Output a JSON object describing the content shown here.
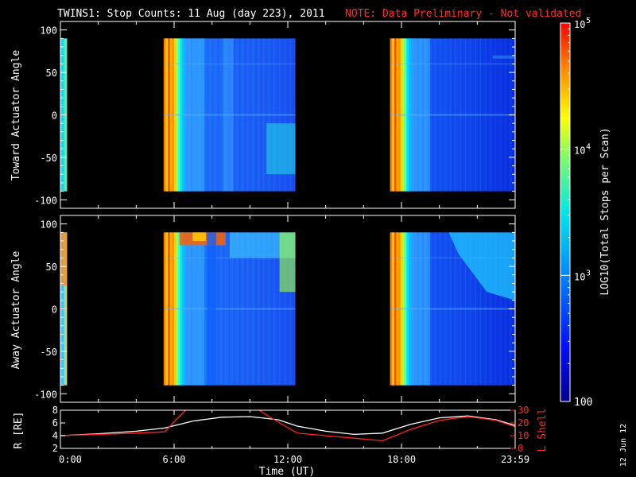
{
  "header": {
    "title": "TWINS1: Stop Counts: 11 Aug (day 223), 2011",
    "note": "NOTE: Data Preliminary - Not validated"
  },
  "colorbar": {
    "label": "LOG10(Total Stops per Scan)",
    "ticks": [
      "10^5",
      "10^4",
      "10^3",
      "100"
    ],
    "range": [
      100,
      100000
    ],
    "scale": "log"
  },
  "side_date": "12 Jun 12",
  "x_axis": {
    "label": "Time (UT)",
    "tick_labels": [
      "0:00",
      "6:00",
      "12:00",
      "18:00",
      "23:59"
    ]
  },
  "chart_data": [
    {
      "type": "heatmap",
      "ylabel": "Toward Actuator Angle",
      "ylim": [
        -110,
        110
      ],
      "yticks": [
        100,
        50,
        0,
        -50,
        -100
      ],
      "xlim_hours": [
        0,
        24
      ],
      "data_coverage_hours": [
        [
          0,
          0.35
        ],
        [
          5.45,
          12.4
        ],
        [
          17.4,
          24
        ]
      ],
      "angle_range": [
        -90,
        90
      ],
      "color_scale": "log counts 100 to 1e5 (blue to red)"
    },
    {
      "type": "heatmap",
      "ylabel": "Away Actuator Angle",
      "ylim": [
        -110,
        110
      ],
      "yticks": [
        100,
        50,
        0,
        -50,
        -100
      ],
      "xlim_hours": [
        0,
        24
      ],
      "data_coverage_hours": [
        [
          0,
          0.35
        ],
        [
          5.45,
          12.4
        ],
        [
          17.4,
          24
        ]
      ],
      "angle_range": [
        -90,
        90
      ],
      "color_scale": "log counts 100 to 1e5 (blue to red)"
    },
    {
      "type": "line",
      "ylabel": "R [RE]",
      "y2label": "L Shell",
      "ylim": [
        2,
        8
      ],
      "y2lim": [
        0,
        30
      ],
      "yticks": [
        2,
        4,
        6,
        8
      ],
      "y2ticks": [
        0,
        10,
        20,
        30
      ],
      "series": [
        {
          "name": "R [RE]",
          "color": "#ffffff",
          "x": [
            0,
            2,
            4,
            5.5,
            7,
            8.5,
            10,
            11.5,
            12.5,
            14,
            15.5,
            17,
            18.5,
            20,
            21.5,
            23,
            24
          ],
          "values": [
            4.0,
            4.3,
            4.7,
            5.2,
            6.3,
            6.9,
            7.0,
            6.5,
            5.5,
            4.7,
            4.2,
            4.4,
            5.8,
            6.8,
            7.1,
            6.5,
            5.6
          ]
        },
        {
          "name": "L Shell",
          "color": "#ff2020",
          "x": [
            0,
            2,
            4,
            5.5,
            6.6,
            7,
            10.2,
            11,
            12.5,
            14,
            15.5,
            17,
            18.5,
            20,
            21.5,
            23,
            24
          ],
          "values": [
            10,
            11,
            12,
            13,
            30,
            33,
            33,
            25,
            12,
            10,
            8,
            6,
            15,
            22,
            25,
            22,
            17
          ]
        }
      ]
    }
  ]
}
